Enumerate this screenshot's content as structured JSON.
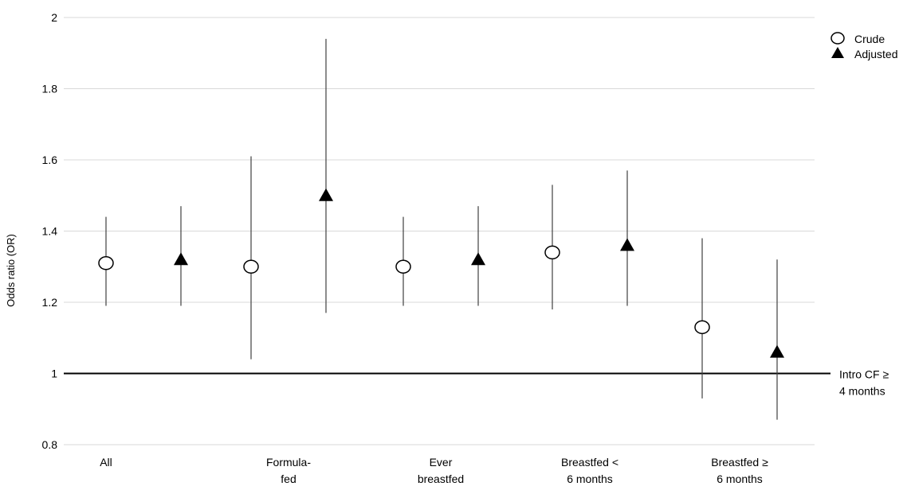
{
  "chart_data": {
    "type": "scatter",
    "title": "",
    "xlabel": "",
    "ylabel": "Odds ratio (OR)",
    "ylim": [
      0.8,
      2
    ],
    "yticks": [
      "0.8",
      "1",
      "1.2",
      "1.4",
      "1.6",
      "1.8",
      "2"
    ],
    "grid": true,
    "legend_position": "top-right",
    "categories": [
      [
        "All"
      ],
      [
        "Formula-",
        "fed"
      ],
      [
        "Ever",
        "breastfed"
      ],
      [
        "Breastfed <",
        "6 months"
      ],
      [
        "Breastfed ≥",
        "6 months"
      ]
    ],
    "series": [
      {
        "name": "Crude",
        "marker": "open-circle",
        "values": [
          1.31,
          1.3,
          1.3,
          1.34,
          1.13
        ],
        "lower": [
          1.19,
          1.04,
          1.19,
          1.18,
          0.93
        ],
        "upper": [
          1.44,
          1.61,
          1.44,
          1.53,
          1.38
        ]
      },
      {
        "name": "Adjusted",
        "marker": "filled-triangle",
        "values": [
          1.32,
          1.5,
          1.32,
          1.36,
          1.06
        ],
        "lower": [
          1.19,
          1.17,
          1.19,
          1.19,
          0.87
        ],
        "upper": [
          1.47,
          1.94,
          1.47,
          1.57,
          1.32
        ]
      }
    ],
    "reference_line": {
      "value": 1,
      "label": [
        "Intro CF ≥",
        "4 months"
      ]
    },
    "colors": {
      "grid": "#d9d9d9",
      "marker": "#000000",
      "error_bar": "#404040",
      "reference": "#000000"
    }
  }
}
